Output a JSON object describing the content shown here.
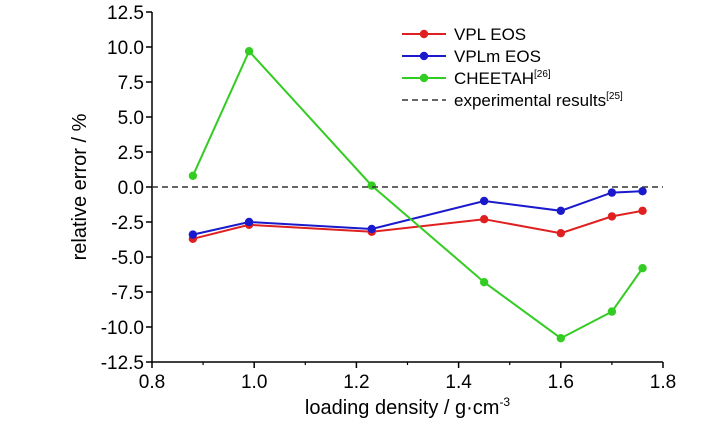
{
  "chart_data": {
    "type": "line",
    "xlabel": "loading density / g·cm",
    "xlabel_sup": "-3",
    "ylabel": "relative error / %",
    "xlim": [
      0.8,
      1.8
    ],
    "ylim": [
      -12.5,
      12.5
    ],
    "xticks": [
      "0.8",
      "1.0",
      "1.2",
      "1.4",
      "1.6",
      "1.8"
    ],
    "yticks": [
      "12.5",
      "10.0",
      "7.5",
      "5.0",
      "2.5",
      "0.0",
      "-2.5",
      "-5.0",
      "-7.5",
      "-10.0",
      "-12.5"
    ],
    "grid": false,
    "legend_position": "top-right",
    "series": [
      {
        "name": "VPL EOS",
        "sup": "",
        "color": "#e02020",
        "style": "solid-marker",
        "x": [
          0.88,
          0.99,
          1.23,
          1.45,
          1.6,
          1.7,
          1.76
        ],
        "y": [
          -3.7,
          -2.7,
          -3.2,
          -2.3,
          -3.3,
          -2.1,
          -1.7
        ]
      },
      {
        "name": "VPLm EOS",
        "sup": "",
        "color": "#1a1acc",
        "style": "solid-marker",
        "x": [
          0.88,
          0.99,
          1.23,
          1.45,
          1.6,
          1.7,
          1.76
        ],
        "y": [
          -3.4,
          -2.5,
          -3.0,
          -1.0,
          -1.7,
          -0.4,
          -0.3
        ]
      },
      {
        "name": "CHEETAH",
        "sup": "[26]",
        "color": "#33cc22",
        "style": "solid-marker",
        "x": [
          0.88,
          0.99,
          1.23,
          1.45,
          1.6,
          1.7,
          1.76
        ],
        "y": [
          0.8,
          9.7,
          0.1,
          -6.8,
          -10.8,
          -8.9,
          -5.8
        ]
      },
      {
        "name": "experimental results",
        "sup": "[25]",
        "color": "#333333",
        "style": "dashed",
        "x": [
          0.8,
          1.8
        ],
        "y": [
          0.0,
          0.0
        ]
      }
    ]
  }
}
